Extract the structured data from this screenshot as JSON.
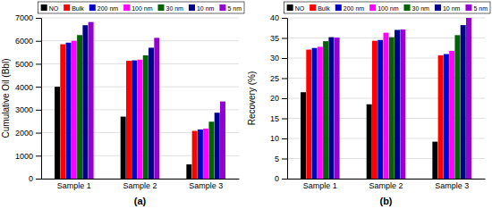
{
  "chart_data": [
    {
      "type": "bar",
      "title": "(a)",
      "ylabel": "Cumulative Oil (Bbl)",
      "categories": [
        "Sample 1",
        "Sample 2",
        "Sample 3"
      ],
      "series": [
        {
          "name": "NO",
          "color": "#000000",
          "values": [
            4000,
            2700,
            620
          ]
        },
        {
          "name": "Bulk",
          "color": "#ff0000",
          "values": [
            5850,
            5130,
            2080
          ]
        },
        {
          "name": "200 nm",
          "color": "#0000cd",
          "values": [
            5920,
            5150,
            2140
          ]
        },
        {
          "name": "100 nm",
          "color": "#ff00ff",
          "values": [
            6000,
            5180,
            2180
          ]
        },
        {
          "name": "30 nm",
          "color": "#006400",
          "values": [
            6250,
            5370,
            2480
          ]
        },
        {
          "name": "10 nm",
          "color": "#00008b",
          "values": [
            6680,
            5700,
            2870
          ]
        },
        {
          "name": "5 nm",
          "color": "#9400d3",
          "values": [
            6820,
            6130,
            3360
          ]
        }
      ],
      "ylim": [
        0,
        7000
      ],
      "yticks": [
        0,
        1000,
        2000,
        3000,
        4000,
        5000,
        6000,
        7000
      ],
      "grid": true,
      "legend": "upper left"
    },
    {
      "type": "bar",
      "title": "(b)",
      "ylabel": "Recovery (%)",
      "categories": [
        "Sample 1",
        "Sample 2",
        "Sample 3"
      ],
      "series": [
        {
          "name": "NO",
          "color": "#000000",
          "values": [
            21.5,
            18.5,
            9.2
          ]
        },
        {
          "name": "Bulk",
          "color": "#ff0000",
          "values": [
            32.1,
            34.3,
            30.7
          ]
        },
        {
          "name": "200 nm",
          "color": "#0000cd",
          "values": [
            32.5,
            34.5,
            31.0
          ]
        },
        {
          "name": "100 nm",
          "color": "#ff00ff",
          "values": [
            32.8,
            36.3,
            31.8
          ]
        },
        {
          "name": "30 nm",
          "color": "#006400",
          "values": [
            34.2,
            35.2,
            35.7
          ]
        },
        {
          "name": "10 nm",
          "color": "#00008b",
          "values": [
            35.2,
            37.0,
            38.2
          ]
        },
        {
          "name": "5 nm",
          "color": "#9400d3",
          "values": [
            35.1,
            37.1,
            40.0
          ]
        }
      ],
      "ylim": [
        0,
        40
      ],
      "yticks": [
        0,
        5,
        10,
        15,
        20,
        25,
        30,
        35,
        40
      ],
      "grid": true,
      "legend": "upper left"
    }
  ]
}
